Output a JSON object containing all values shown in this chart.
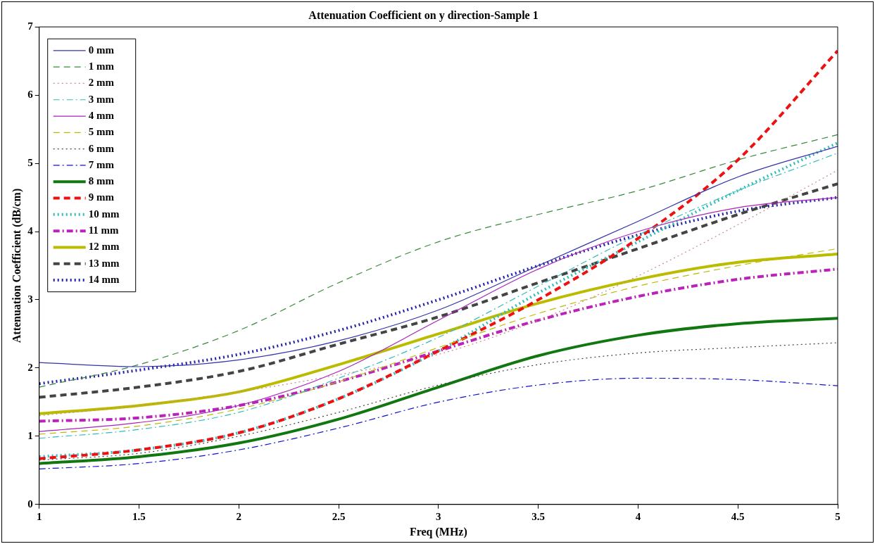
{
  "chart_data": {
    "type": "line",
    "title": "Attenuation Coefficient on y direction-Sample 1",
    "xlabel": "Freq (MHz)",
    "ylabel": "Attenuation Coefficient (dB/cm)",
    "x": [
      1,
      1.5,
      2,
      2.5,
      3,
      3.5,
      4,
      4.5,
      5
    ],
    "xlim": [
      1,
      5
    ],
    "xticks": [
      1,
      1.5,
      2,
      2.5,
      3,
      3.5,
      4,
      4.5,
      5
    ],
    "ylim": [
      0,
      7
    ],
    "yticks": [
      0,
      1,
      2,
      3,
      4,
      5,
      6,
      7
    ],
    "grid": false,
    "legend": "top left",
    "marker": "none",
    "series": [
      {
        "name": "0 mm",
        "color": "#3333aa",
        "line_style": "solid",
        "values": [
          2.08,
          2.02,
          2.12,
          2.4,
          2.85,
          3.5,
          4.15,
          4.8,
          5.25
        ]
      },
      {
        "name": "1 mm",
        "color": "#3a8a3a",
        "line_style": "dashed",
        "values": [
          1.72,
          2.05,
          2.55,
          3.25,
          3.85,
          4.25,
          4.6,
          5.05,
          5.42
        ]
      },
      {
        "name": "2 mm",
        "color": "#cc8888",
        "line_style": "dotted",
        "values": [
          1.3,
          1.45,
          1.65,
          1.9,
          2.2,
          2.7,
          3.35,
          4.1,
          4.9
        ]
      },
      {
        "name": "3 mm",
        "color": "#33bbbb",
        "line_style": "dashdot",
        "values": [
          0.97,
          1.1,
          1.35,
          1.85,
          2.45,
          3.2,
          3.95,
          4.6,
          5.15
        ]
      },
      {
        "name": "4 mm",
        "color": "#aa22bb",
        "line_style": "solid",
        "values": [
          1.07,
          1.2,
          1.45,
          1.95,
          2.7,
          3.45,
          4.0,
          4.35,
          4.5
        ]
      },
      {
        "name": "5 mm",
        "color": "#bbbb00",
        "line_style": "dashed",
        "values": [
          1.03,
          1.15,
          1.4,
          1.8,
          2.3,
          2.8,
          3.2,
          3.5,
          3.75
        ]
      },
      {
        "name": "6 mm",
        "color": "#444444",
        "line_style": "dotted",
        "values": [
          0.65,
          0.75,
          1.0,
          1.35,
          1.75,
          2.05,
          2.22,
          2.3,
          2.37
        ]
      },
      {
        "name": "7 mm",
        "color": "#1111cc",
        "line_style": "dashdot",
        "values": [
          0.52,
          0.6,
          0.8,
          1.12,
          1.5,
          1.75,
          1.85,
          1.83,
          1.74
        ]
      },
      {
        "name": "8 mm",
        "color": "#117711",
        "line_style": "solid",
        "values": [
          0.6,
          0.7,
          0.9,
          1.25,
          1.72,
          2.18,
          2.48,
          2.65,
          2.73
        ]
      },
      {
        "name": "9 mm",
        "color": "#ee1111",
        "line_style": "dashed",
        "values": [
          0.67,
          0.8,
          1.05,
          1.55,
          2.25,
          3.0,
          3.9,
          5.05,
          6.65
        ]
      },
      {
        "name": "10 mm",
        "color": "#33bbbb",
        "line_style": "dotted",
        "values": [
          0.7,
          0.8,
          1.05,
          1.55,
          2.25,
          3.1,
          3.85,
          4.6,
          5.3
        ]
      },
      {
        "name": "11 mm",
        "color": "#bb22bb",
        "line_style": "dashdot",
        "values": [
          1.22,
          1.27,
          1.45,
          1.8,
          2.25,
          2.7,
          3.05,
          3.3,
          3.45
        ]
      },
      {
        "name": "12 mm",
        "color": "#bbbb00",
        "line_style": "solid",
        "values": [
          1.33,
          1.45,
          1.65,
          2.05,
          2.5,
          2.95,
          3.3,
          3.55,
          3.67
        ]
      },
      {
        "name": "13 mm",
        "color": "#444444",
        "line_style": "dashed",
        "values": [
          1.57,
          1.72,
          1.95,
          2.35,
          2.75,
          3.25,
          3.75,
          4.25,
          4.7
        ]
      },
      {
        "name": "14 mm",
        "color": "#2222aa",
        "line_style": "dotted",
        "values": [
          1.77,
          1.97,
          2.2,
          2.55,
          3.0,
          3.5,
          3.95,
          4.3,
          4.5
        ]
      }
    ]
  }
}
